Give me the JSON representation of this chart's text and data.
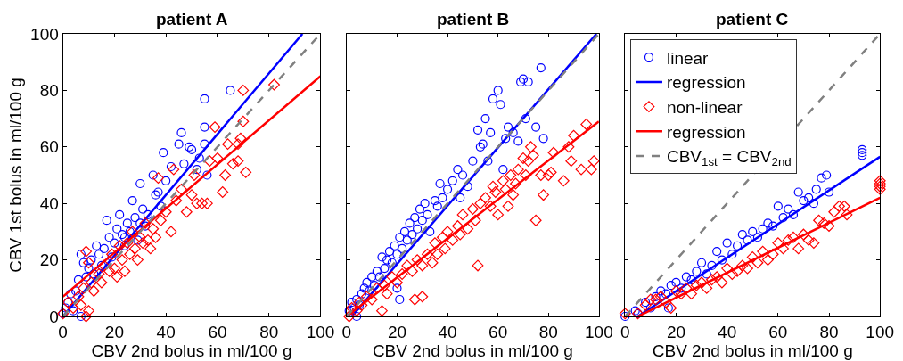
{
  "chart_data": [
    {
      "type": "scatter",
      "title": "patient A",
      "xlabel": "CBV 2nd bolus in ml/100 g",
      "ylabel": "CBV 1st bolus in ml/100 g",
      "xlim": [
        0,
        100
      ],
      "ylim": [
        0,
        100
      ],
      "xticks": [
        0,
        20,
        40,
        60,
        80,
        100
      ],
      "yticks": [
        0,
        20,
        40,
        60,
        80,
        100
      ],
      "legend": false,
      "series": [
        {
          "marker": "circle",
          "color": "#0000ff",
          "x": [
            0,
            1,
            2,
            3,
            4,
            5,
            6,
            7,
            7,
            8,
            9,
            10,
            11,
            12,
            13,
            14,
            15,
            16,
            17,
            18,
            19,
            20,
            21,
            22,
            23,
            24,
            25,
            26,
            27,
            28,
            29,
            30,
            31,
            32,
            33,
            35,
            36,
            37,
            38,
            39,
            40,
            42,
            45,
            46,
            47,
            49,
            50,
            52,
            53,
            55,
            55,
            56,
            55,
            65,
            24,
            30
          ],
          "values": [
            1,
            3,
            5,
            8,
            2,
            9,
            13,
            22,
            0,
            19,
            14,
            17,
            20,
            15,
            25,
            22,
            18,
            24,
            34,
            28,
            21,
            26,
            31,
            36,
            29,
            25,
            33,
            30,
            41,
            35,
            27,
            47,
            38,
            32,
            36,
            50,
            43,
            44,
            39,
            58,
            48,
            53,
            61,
            65,
            54,
            60,
            59,
            52,
            56,
            61,
            67,
            50,
            77,
            80,
            28,
            33
          ]
        },
        {
          "type": "line",
          "line_style": "solid",
          "color": "#0000ff",
          "x": [
            0,
            93
          ],
          "values": [
            0,
            100
          ]
        },
        {
          "marker": "diamond",
          "color": "#ff0000",
          "x": [
            0,
            2,
            4,
            6,
            8,
            9,
            9,
            10,
            11,
            12,
            14,
            15,
            16,
            18,
            19,
            20,
            21,
            22,
            23,
            24,
            25,
            26,
            27,
            28,
            29,
            30,
            31,
            32,
            33,
            34,
            35,
            36,
            37,
            38,
            40,
            42,
            43,
            44,
            46,
            48,
            50,
            51,
            52,
            54,
            56,
            57,
            59,
            60,
            62,
            63,
            64,
            66,
            68,
            68,
            69,
            70,
            71,
            70,
            82,
            10,
            7
          ],
          "values": [
            1,
            5,
            3,
            7,
            10,
            0,
            23,
            19,
            12,
            9,
            15,
            12,
            18,
            16,
            22,
            17,
            14,
            25,
            20,
            16,
            26,
            22,
            30,
            24,
            20,
            28,
            26,
            33,
            27,
            24,
            31,
            28,
            49,
            34,
            37,
            30,
            52,
            41,
            45,
            37,
            43,
            50,
            40,
            40,
            40,
            55,
            67,
            56,
            44,
            50,
            61,
            54,
            55,
            61,
            63,
            69,
            51,
            80,
            82,
            2,
            4
          ]
        },
        {
          "type": "line",
          "line_style": "solid",
          "color": "#ff0000",
          "x": [
            0,
            100
          ],
          "values": [
            7,
            85
          ]
        },
        {
          "type": "line",
          "line_style": "dashed",
          "color": "#808080",
          "x": [
            0,
            100
          ],
          "values": [
            0,
            100
          ]
        }
      ]
    },
    {
      "type": "scatter",
      "title": "patient B",
      "xlabel": "CBV 2nd bolus in ml/100 g",
      "xlim": [
        0,
        100
      ],
      "ylim": [
        0,
        100
      ],
      "xticks": [
        0,
        20,
        40,
        60,
        80,
        100
      ],
      "yticks": [
        0,
        20,
        40,
        60,
        80,
        100
      ],
      "tick_labels": "x",
      "legend": false,
      "series": [
        {
          "marker": "circle",
          "color": "#0000ff",
          "x": [
            1,
            2,
            3,
            4,
            5,
            6,
            7,
            8,
            9,
            10,
            11,
            12,
            13,
            14,
            15,
            16,
            17,
            18,
            19,
            20,
            21,
            22,
            23,
            24,
            25,
            26,
            27,
            28,
            29,
            30,
            31,
            32,
            33,
            35,
            36,
            37,
            38,
            40,
            42,
            44,
            45,
            46,
            48,
            50,
            52,
            53,
            54,
            55,
            56,
            57,
            58,
            60,
            61,
            62,
            63,
            64,
            66,
            68,
            69,
            70,
            71,
            72,
            75,
            77,
            78,
            20,
            21,
            4
          ],
          "values": [
            2,
            5,
            3,
            6,
            4,
            8,
            10,
            12,
            9,
            14,
            11,
            16,
            14,
            21,
            17,
            20,
            23,
            19,
            25,
            22,
            28,
            24,
            30,
            27,
            33,
            29,
            35,
            31,
            38,
            34,
            40,
            36,
            30,
            41,
            39,
            47,
            42,
            45,
            48,
            52,
            42,
            50,
            46,
            55,
            66,
            60,
            61,
            70,
            55,
            65,
            77,
            80,
            75,
            52,
            63,
            67,
            65,
            62,
            83,
            84,
            70,
            83,
            67,
            88,
            63,
            10,
            6,
            0
          ]
        },
        {
          "type": "line",
          "line_style": "solid",
          "color": "#0000ff",
          "x": [
            2,
            99
          ],
          "values": [
            0,
            100
          ]
        },
        {
          "marker": "diamond",
          "color": "#ff0000",
          "x": [
            1,
            2,
            4,
            5,
            6,
            8,
            10,
            12,
            14,
            15,
            16,
            18,
            20,
            22,
            24,
            26,
            27,
            28,
            30,
            30,
            32,
            34,
            35,
            36,
            38,
            39,
            40,
            42,
            44,
            45,
            46,
            48,
            50,
            51,
            52,
            53,
            55,
            57,
            58,
            59,
            60,
            62,
            63,
            64,
            65,
            66,
            67,
            68,
            70,
            71,
            72,
            73,
            74,
            75,
            77,
            78,
            80,
            81,
            82,
            86,
            88,
            89,
            90,
            93,
            95,
            97,
            98
          ],
          "values": [
            0,
            3,
            2,
            5,
            4,
            7,
            6,
            10,
            2,
            11,
            8,
            14,
            12,
            15,
            18,
            16,
            6,
            20,
            18,
            7,
            22,
            19,
            26,
            22,
            28,
            24,
            30,
            27,
            32,
            29,
            36,
            31,
            38,
            34,
            18,
            40,
            42,
            39,
            46,
            44,
            36,
            48,
            45,
            39,
            50,
            43,
            47,
            52,
            56,
            50,
            55,
            60,
            57,
            34,
            50,
            43,
            50,
            51,
            58,
            48,
            60,
            55,
            64,
            52,
            68,
            52,
            55
          ]
        },
        {
          "type": "line",
          "line_style": "solid",
          "color": "#ff0000",
          "x": [
            0,
            100
          ],
          "values": [
            0,
            69
          ]
        },
        {
          "type": "line",
          "line_style": "dashed",
          "color": "#808080",
          "x": [
            0,
            100
          ],
          "values": [
            0,
            100
          ]
        }
      ]
    },
    {
      "type": "scatter",
      "title": "patient C",
      "xlabel": "CBV 2nd bolus in ml/100 g",
      "xlim": [
        0,
        100
      ],
      "ylim": [
        0,
        100
      ],
      "xticks": [
        0,
        20,
        40,
        60,
        80,
        100
      ],
      "yticks": [
        0,
        20,
        40,
        60,
        80,
        100
      ],
      "tick_labels": "x",
      "legend": "top left",
      "series": [
        {
          "name": "linear",
          "marker": "circle",
          "color": "#0000ff",
          "x": [
            0,
            4,
            5,
            8,
            10,
            12,
            14,
            16,
            18,
            20,
            22,
            24,
            26,
            28,
            30,
            32,
            34,
            36,
            38,
            40,
            42,
            44,
            46,
            48,
            50,
            52,
            54,
            56,
            58,
            60,
            62,
            64,
            66,
            68,
            70,
            72,
            74,
            75,
            77,
            79,
            80,
            93,
            93,
            93,
            17
          ],
          "values": [
            0,
            2,
            1,
            5,
            3,
            7,
            9,
            8,
            11,
            12,
            10,
            14,
            13,
            16,
            19,
            15,
            18,
            23,
            20,
            26,
            22,
            25,
            29,
            27,
            30,
            28,
            31,
            33,
            32,
            39,
            35,
            38,
            36,
            44,
            41,
            42,
            40,
            45,
            49,
            50,
            44,
            57,
            58,
            59,
            3
          ]
        },
        {
          "type": "line",
          "name": "regression",
          "line_style": "solid",
          "color": "#0000ff",
          "x": [
            5,
            100
          ],
          "values": [
            0,
            56.5
          ]
        },
        {
          "name": "non-linear",
          "marker": "diamond",
          "color": "#ff0000",
          "x": [
            0,
            5,
            8,
            10,
            12,
            14,
            16,
            18,
            20,
            22,
            24,
            26,
            28,
            30,
            32,
            34,
            36,
            38,
            40,
            42,
            44,
            46,
            48,
            50,
            52,
            54,
            56,
            58,
            60,
            62,
            64,
            66,
            68,
            70,
            72,
            74,
            76,
            78,
            80,
            82,
            84,
            86,
            87,
            100,
            100,
            100,
            100
          ],
          "values": [
            1,
            1,
            4,
            6,
            6,
            7,
            5,
            3,
            9,
            8,
            10,
            8,
            11,
            12,
            10,
            13,
            14,
            12,
            17,
            15,
            16,
            18,
            17,
            21,
            19,
            23,
            20,
            22,
            26,
            24,
            27,
            28,
            24,
            29,
            27,
            26,
            34,
            33,
            32,
            37,
            39,
            39,
            36,
            45,
            46,
            47,
            48
          ]
        },
        {
          "type": "line",
          "name": "regression",
          "line_style": "solid",
          "color": "#ff0000",
          "x": [
            5,
            100
          ],
          "values": [
            0,
            42
          ]
        },
        {
          "type": "line",
          "name": "CBV$_{1st}$ = CBV$_{2nd}$",
          "line_style": "dashed",
          "color": "#808080",
          "x": [
            0,
            100
          ],
          "values": [
            0,
            100
          ]
        }
      ]
    }
  ]
}
